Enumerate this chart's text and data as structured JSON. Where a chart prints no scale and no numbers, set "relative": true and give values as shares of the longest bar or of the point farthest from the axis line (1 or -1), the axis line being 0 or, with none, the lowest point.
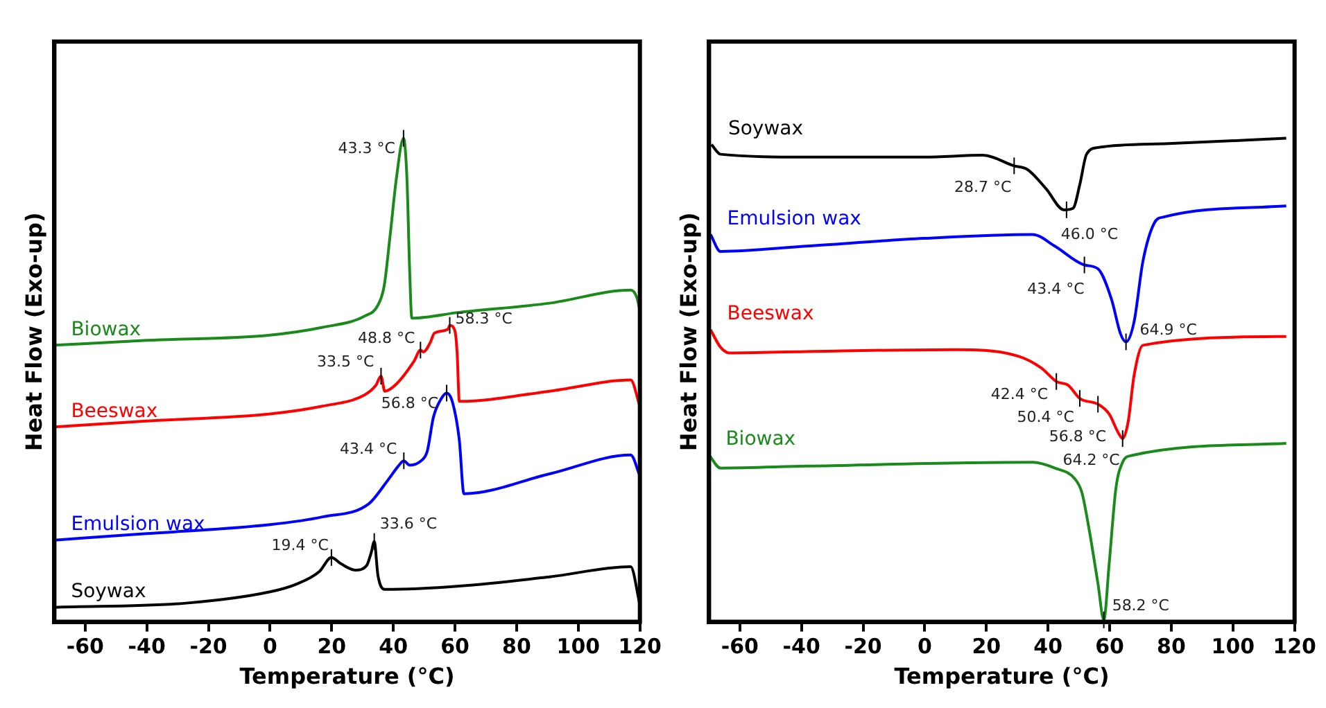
{
  "chart_data": [
    {
      "type": "line",
      "xlabel": "Temperature (°C)",
      "ylabel": "Heat Flow (Exo-up)",
      "xlim": [
        -70,
        120
      ],
      "xticks": [
        -60,
        -40,
        -20,
        0,
        20,
        40,
        60,
        80,
        100,
        120
      ],
      "relative": true,
      "marker": "none",
      "series": [
        {
          "name": "Biowax",
          "color": "#1a8a1a",
          "x": [
            -70,
            -40,
            0,
            17,
            30.6,
            35,
            37,
            39,
            41,
            43.3,
            44.4,
            45.3,
            46,
            61.4,
            90.7,
            117,
            119,
            120
          ],
          "values": [
            0.572,
            0.582,
            0.593,
            0.609,
            0.632,
            0.655,
            0.694,
            0.802,
            0.918,
            1.0,
            0.918,
            0.724,
            0.628,
            0.64,
            0.659,
            0.686,
            0.671,
            0.644
          ]
        },
        {
          "name": "Beeswax",
          "color": "#ff0000",
          "x": [
            -70,
            -41,
            0,
            17,
            30.6,
            34.3,
            36,
            37.2,
            41,
            46.7,
            48.8,
            49.7,
            52,
            53.3,
            57.7,
            58.3,
            60,
            60.7,
            61.4,
            90.7,
            117,
            120
          ],
          "values": [
            0.403,
            0.415,
            0.43,
            0.446,
            0.469,
            0.489,
            0.508,
            0.477,
            0.492,
            0.539,
            0.562,
            0.558,
            0.578,
            0.597,
            0.605,
            0.613,
            0.601,
            0.555,
            0.456,
            0.477,
            0.5,
            0.446
          ]
        },
        {
          "name": "Emulsion wax",
          "color": "#0000ff",
          "x": [
            -70,
            -41,
            0,
            17,
            32,
            38,
            41.6,
            43.4,
            45.3,
            49,
            51,
            53,
            55.5,
            57.3,
            59.2,
            61.4,
            62.9,
            90.7,
            117,
            120
          ],
          "values": [
            0.169,
            0.182,
            0.201,
            0.217,
            0.244,
            0.291,
            0.322,
            0.333,
            0.324,
            0.333,
            0.353,
            0.423,
            0.461,
            0.473,
            0.454,
            0.376,
            0.265,
            0.306,
            0.345,
            0.302
          ]
        },
        {
          "name": "Soywax",
          "color": "#000000",
          "x": [
            -70,
            -26.6,
            0,
            8.6,
            16,
            19.9,
            23,
            27.7,
            31.3,
            32.8,
            33.8,
            35,
            37.2,
            61.4,
            90.7,
            117,
            120
          ],
          "values": [
            0.03,
            0.039,
            0.062,
            0.078,
            0.104,
            0.133,
            0.12,
            0.107,
            0.116,
            0.143,
            0.166,
            0.096,
            0.067,
            0.074,
            0.093,
            0.114,
            0.035
          ]
        }
      ],
      "annotations": [
        {
          "text": "43.3 °C",
          "x": 43.3,
          "y": 1.0
        },
        {
          "text": "48.8 °C",
          "x": 48.8,
          "y": 0.562
        },
        {
          "text": "58.3 °C",
          "x": 58.3,
          "y": 0.613
        },
        {
          "text": "33.5 °C",
          "x": 36,
          "y": 0.508
        },
        {
          "text": "56.8 °C",
          "x": 57.3,
          "y": 0.473
        },
        {
          "text": "43.4 °C",
          "x": 43.4,
          "y": 0.333
        },
        {
          "text": "19.4 °C",
          "x": 19.9,
          "y": 0.133
        },
        {
          "text": "33.6 °C",
          "x": 33.8,
          "y": 0.166
        }
      ]
    },
    {
      "type": "line",
      "xlabel": "Temperature (°C)",
      "ylabel": "Heat Flow (Exo-up)",
      "xlim": [
        -70,
        120
      ],
      "xticks": [
        -60,
        -40,
        -20,
        0,
        20,
        40,
        60,
        80,
        100,
        120
      ],
      "relative": true,
      "marker": "none",
      "series": [
        {
          "name": "Soywax",
          "color": "#000000",
          "x": [
            -69.2,
            -66.3,
            -38.4,
            -0.3,
            18.8,
            29,
            33.4,
            39.3,
            45.2,
            48.1,
            50.3,
            52.5,
            56.2,
            79,
            117.3
          ],
          "values": [
            0.987,
            0.967,
            0.961,
            0.961,
            0.965,
            0.943,
            0.935,
            0.896,
            0.852,
            0.855,
            0.904,
            0.967,
            0.981,
            0.989,
            1.0
          ]
        },
        {
          "name": "Emulsion wax",
          "color": "#0000ff",
          "x": [
            -69.5,
            -66.3,
            -38.4,
            -0.3,
            35,
            42.2,
            51.8,
            56.2,
            60.6,
            63.5,
            65.3,
            67.9,
            70.8,
            74.5,
            77.4,
            117.3
          ],
          "values": [
            0.801,
            0.766,
            0.777,
            0.793,
            0.801,
            0.777,
            0.738,
            0.73,
            0.667,
            0.596,
            0.579,
            0.62,
            0.746,
            0.825,
            0.837,
            0.86
          ]
        },
        {
          "name": "Beeswax",
          "color": "#ff0000",
          "x": [
            -69.5,
            -66.3,
            -63.4,
            -38.4,
            10,
            30.5,
            37.8,
            42.7,
            46.6,
            50.3,
            56.2,
            59.8,
            62.8,
            64.2,
            66,
            67.9,
            70.8,
            117.3
          ],
          "values": [
            0.604,
            0.568,
            0.556,
            0.559,
            0.563,
            0.549,
            0.525,
            0.497,
            0.489,
            0.462,
            0.45,
            0.43,
            0.391,
            0.379,
            0.414,
            0.509,
            0.572,
            0.59
          ]
        },
        {
          "name": "Biowax",
          "color": "#1a8a1a",
          "x": [
            -70,
            -66.3,
            -38.4,
            35,
            42.2,
            48.8,
            51,
            53.2,
            56.2,
            58.1,
            59.8,
            62,
            64.2,
            67.1,
            117.3
          ],
          "values": [
            0.345,
            0.318,
            0.322,
            0.33,
            0.318,
            0.295,
            0.267,
            0.196,
            0.079,
            0.004,
            0.117,
            0.275,
            0.33,
            0.344,
            0.369
          ]
        }
      ],
      "annotations": [
        {
          "text": "28.7 °C",
          "x": 29,
          "y": 0.943
        },
        {
          "text": "46.0 °C",
          "x": 46,
          "y": 0.852
        },
        {
          "text": "43.4 °C",
          "x": 51.8,
          "y": 0.738
        },
        {
          "text": "64.9 °C",
          "x": 65.3,
          "y": 0.579
        },
        {
          "text": "42.4 °C",
          "x": 42.7,
          "y": 0.497
        },
        {
          "text": "50.4 °C",
          "x": 50.3,
          "y": 0.462
        },
        {
          "text": "56.8 °C",
          "x": 56.2,
          "y": 0.45
        },
        {
          "text": "64.2 °C",
          "x": 64.2,
          "y": 0.379
        },
        {
          "text": "58.2 °C",
          "x": 58.1,
          "y": 0.004
        }
      ]
    }
  ]
}
